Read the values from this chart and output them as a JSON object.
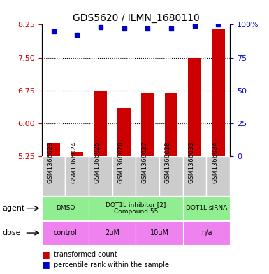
{
  "title": "GDS5620 / ILMN_1680110",
  "samples": [
    "GSM1366023",
    "GSM1366024",
    "GSM1366025",
    "GSM1366026",
    "GSM1366027",
    "GSM1366028",
    "GSM1366033",
    "GSM1366034"
  ],
  "bar_values": [
    5.55,
    5.35,
    6.75,
    6.35,
    6.7,
    6.7,
    7.5,
    8.15
  ],
  "percentile_values": [
    95,
    92,
    98,
    97,
    97,
    97,
    99,
    100
  ],
  "ylim_left": [
    5.25,
    8.25
  ],
  "ylim_right": [
    0,
    100
  ],
  "yticks_left": [
    5.25,
    6.0,
    6.75,
    7.5,
    8.25
  ],
  "yticks_right": [
    0,
    25,
    50,
    75,
    100
  ],
  "bar_color": "#cc0000",
  "dot_color": "#0000cc",
  "bar_width": 0.55,
  "agent_groups": [
    {
      "label": "DMSO",
      "start": 0,
      "end": 2,
      "color": "#90EE90"
    },
    {
      "label": "DOT1L inhibitor [2]\nCompound 55",
      "start": 2,
      "end": 6,
      "color": "#90EE90"
    },
    {
      "label": "DOT1L siRNA",
      "start": 6,
      "end": 8,
      "color": "#90EE90"
    }
  ],
  "dose_groups": [
    {
      "label": "control",
      "start": 0,
      "end": 2,
      "color": "#EE82EE"
    },
    {
      "label": "2uM",
      "start": 2,
      "end": 4,
      "color": "#EE82EE"
    },
    {
      "label": "10uM",
      "start": 4,
      "end": 6,
      "color": "#EE82EE"
    },
    {
      "label": "n/a",
      "start": 6,
      "end": 8,
      "color": "#EE82EE"
    }
  ],
  "tick_label_color_left": "#cc0000",
  "tick_label_color_right": "#0000cc",
  "legend_items": [
    {
      "label": "transformed count",
      "color": "#cc0000"
    },
    {
      "label": "percentile rank within the sample",
      "color": "#0000cc"
    }
  ],
  "agent_row_label": "agent",
  "dose_row_label": "dose",
  "sample_box_color": "#cccccc"
}
